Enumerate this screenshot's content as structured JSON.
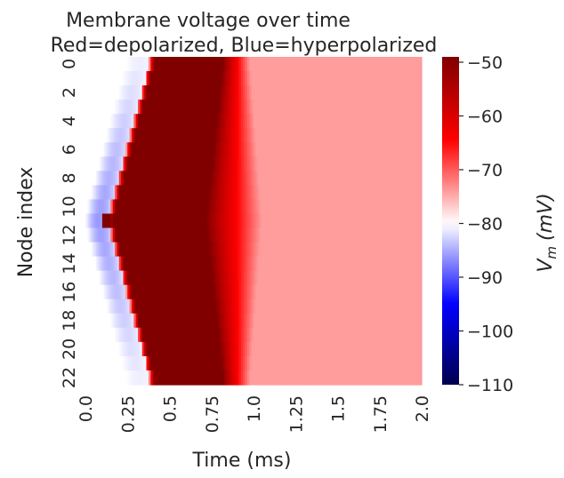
{
  "chart_data": {
    "type": "heatmap",
    "title_line1": "Membrane voltage over time",
    "title_line2": "Red=depolarized, Blue=hyperpolarized",
    "xlabel": "Time (ms)",
    "ylabel": "Node index",
    "colorbar_label": "V",
    "colorbar_label_sub": "m",
    "colorbar_label_unit": "(mV)",
    "xlim": [
      0.0,
      2.0
    ],
    "x_ticks": [
      "0.0",
      "0.25",
      "0.5",
      "0.75",
      "1.0",
      "1.25",
      "1.5",
      "1.75",
      "2.0"
    ],
    "y_ticks": [
      "0",
      "2",
      "4",
      "6",
      "8",
      "10",
      "12",
      "14",
      "16",
      "18",
      "20",
      "22"
    ],
    "n_nodes": 23,
    "stimulated_node": 11,
    "stimulus_time_ms": [
      0.1,
      0.15
    ],
    "colorbar_ticks": [
      "−50",
      "−60",
      "−70",
      "−80",
      "−90",
      "−100",
      "−110"
    ],
    "colorbar_range": [
      -110,
      -49
    ],
    "colormap": "seismic",
    "baseline_mV": -80,
    "peak_mV": -49,
    "plateau_mV": -74,
    "onset_time_ms": {
      "center": 0.13,
      "edge": 0.38
    },
    "peak_end_time_ms": {
      "center": 0.72,
      "edge": 0.82
    },
    "decay_end_time_ms": {
      "center": 1.05,
      "edge": 0.98
    },
    "hyperpolarization_mV": {
      "center": -86,
      "edge": -81
    }
  }
}
